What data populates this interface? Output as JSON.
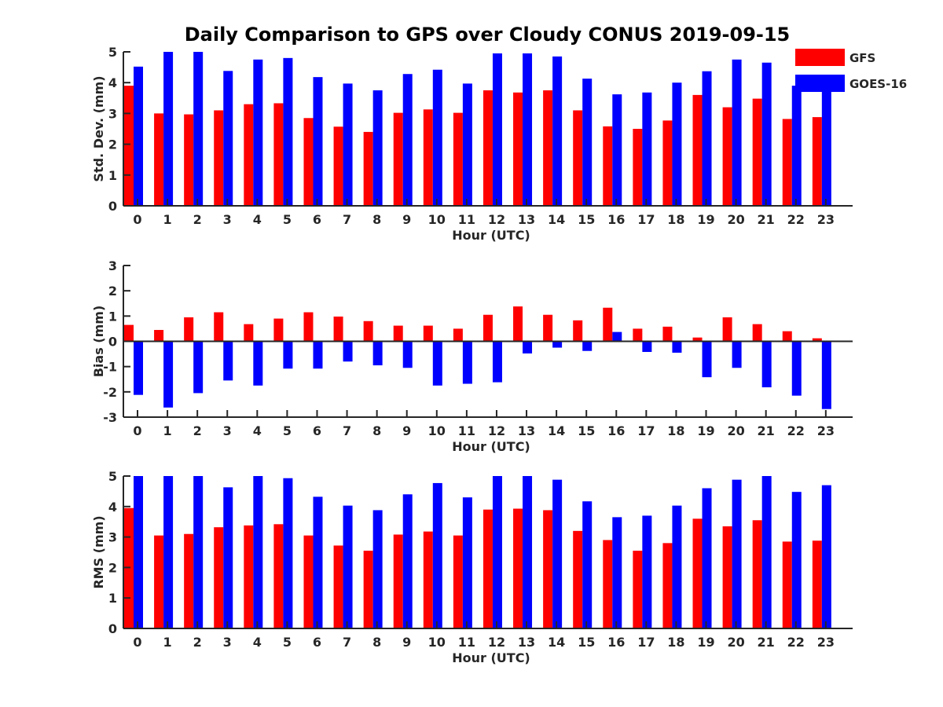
{
  "title": "Daily Comparison to GPS over Cloudy CONUS 2019-09-15",
  "colors": {
    "GFS": "#ff0000",
    "GOES-16": "#0000ff"
  },
  "legend": {
    "placement": "top-right",
    "entries": [
      "GFS",
      "GOES-16"
    ]
  },
  "chart_data": [
    {
      "type": "bar",
      "ylabel": "Std. Dev. (mm)",
      "xlabel": "Hour (UTC)",
      "ylim": [
        0,
        5
      ],
      "yticks": [
        0,
        1,
        2,
        3,
        4,
        5
      ],
      "categories": [
        "0",
        "1",
        "2",
        "3",
        "4",
        "5",
        "6",
        "7",
        "8",
        "9",
        "10",
        "11",
        "12",
        "13",
        "14",
        "15",
        "16",
        "17",
        "18",
        "19",
        "20",
        "21",
        "22",
        "23"
      ],
      "series": [
        {
          "name": "GFS",
          "values": [
            3.9,
            3.0,
            2.97,
            3.1,
            3.3,
            3.33,
            2.85,
            2.57,
            2.4,
            3.02,
            3.13,
            3.02,
            3.75,
            3.68,
            3.75,
            3.1,
            2.58,
            2.5,
            2.77,
            3.6,
            3.2,
            3.48,
            2.82,
            2.88
          ]
        },
        {
          "name": "GOES-16",
          "values": [
            4.52,
            5.0,
            5.0,
            4.38,
            4.75,
            4.8,
            4.18,
            3.97,
            3.75,
            4.28,
            4.42,
            3.97,
            4.95,
            4.95,
            4.85,
            4.13,
            3.62,
            3.68,
            4.0,
            4.37,
            4.75,
            4.65,
            3.9,
            4.0
          ]
        }
      ]
    },
    {
      "type": "bar",
      "ylabel": "Bias (mm)",
      "xlabel": "Hour (UTC)",
      "ylim": [
        -3,
        3
      ],
      "yticks": [
        -3,
        -2,
        -1,
        0,
        1,
        2,
        3
      ],
      "categories": [
        "0",
        "1",
        "2",
        "3",
        "4",
        "5",
        "6",
        "7",
        "8",
        "9",
        "10",
        "11",
        "12",
        "13",
        "14",
        "15",
        "16",
        "17",
        "18",
        "19",
        "20",
        "21",
        "22",
        "23"
      ],
      "series": [
        {
          "name": "GFS",
          "values": [
            0.65,
            0.45,
            0.95,
            1.15,
            0.68,
            0.9,
            1.15,
            0.98,
            0.8,
            0.62,
            0.62,
            0.5,
            1.05,
            1.38,
            1.05,
            0.83,
            1.33,
            0.5,
            0.58,
            0.15,
            0.95,
            0.68,
            0.4,
            0.12
          ]
        },
        {
          "name": "GOES-16",
          "values": [
            -2.12,
            -2.62,
            -2.05,
            -1.55,
            -1.75,
            -1.08,
            -1.08,
            -0.8,
            -0.95,
            -1.05,
            -1.75,
            -1.68,
            -1.62,
            -0.48,
            -0.25,
            -0.38,
            0.37,
            -0.42,
            -0.45,
            -1.42,
            -1.05,
            -1.82,
            -2.15,
            -2.68
          ]
        }
      ]
    },
    {
      "type": "bar",
      "ylabel": "RMS (mm)",
      "xlabel": "Hour (UTC)",
      "ylim": [
        0,
        5
      ],
      "yticks": [
        0,
        1,
        2,
        3,
        4,
        5
      ],
      "categories": [
        "0",
        "1",
        "2",
        "3",
        "4",
        "5",
        "6",
        "7",
        "8",
        "9",
        "10",
        "11",
        "12",
        "13",
        "14",
        "15",
        "16",
        "17",
        "18",
        "19",
        "20",
        "21",
        "22",
        "23"
      ],
      "series": [
        {
          "name": "GFS",
          "values": [
            3.95,
            3.05,
            3.1,
            3.32,
            3.38,
            3.42,
            3.05,
            2.72,
            2.55,
            3.08,
            3.18,
            3.05,
            3.9,
            3.93,
            3.88,
            3.2,
            2.9,
            2.55,
            2.8,
            3.6,
            3.35,
            3.55,
            2.85,
            2.88
          ]
        },
        {
          "name": "GOES-16",
          "values": [
            5.0,
            5.0,
            5.0,
            4.63,
            5.0,
            4.93,
            4.32,
            4.03,
            3.88,
            4.4,
            4.77,
            4.3,
            5.0,
            5.0,
            4.88,
            4.17,
            3.65,
            3.7,
            4.03,
            4.6,
            4.88,
            5.0,
            4.48,
            4.7
          ]
        }
      ]
    }
  ]
}
